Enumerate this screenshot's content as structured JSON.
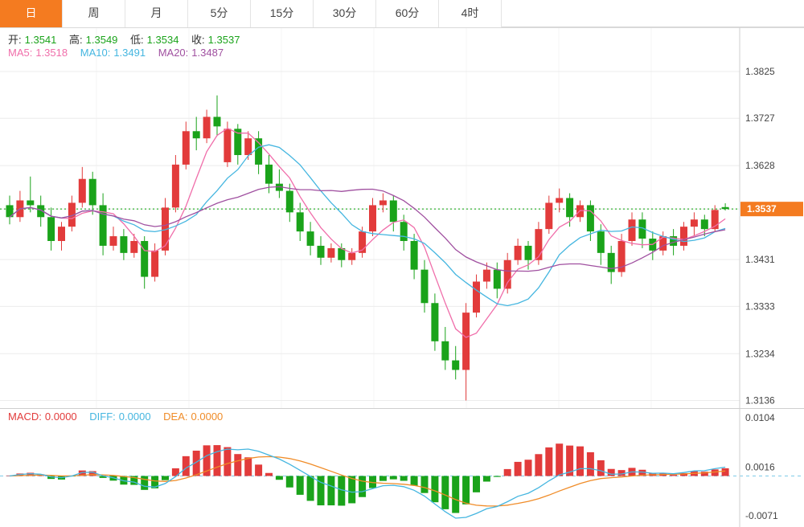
{
  "tabs": [
    {
      "label": "日",
      "active": true
    },
    {
      "label": "周",
      "active": false
    },
    {
      "label": "月",
      "active": false
    },
    {
      "label": "5分",
      "active": false
    },
    {
      "label": "15分",
      "active": false
    },
    {
      "label": "30分",
      "active": false
    },
    {
      "label": "60分",
      "active": false
    },
    {
      "label": "4时",
      "active": false
    }
  ],
  "ohlc": {
    "open_label": "开:",
    "open": "1.3541",
    "high_label": "高:",
    "high": "1.3549",
    "low_label": "低:",
    "low": "1.3534",
    "close_label": "收:",
    "close": "1.3537"
  },
  "ma_legend": {
    "ma5_label": "MA5:",
    "ma5": "1.3518",
    "ma10_label": "MA10:",
    "ma10": "1.3491",
    "ma20_label": "MA20:",
    "ma20": "1.3487"
  },
  "macd_legend": {
    "macd_label": "MACD:",
    "macd": "0.0000",
    "diff_label": "DIFF:",
    "diff": "0.0000",
    "dea_label": "DEA:",
    "dea": "0.0000"
  },
  "price_tag": "1.3537",
  "colors": {
    "up": "#e23b3b",
    "down": "#1aa31a",
    "ma5": "#f06eaa",
    "ma10": "#45b6e0",
    "ma20": "#a050a0",
    "diff": "#45b6e0",
    "dea": "#f08c28",
    "accent": "#f47b20",
    "dotted_line": "#00a000",
    "zero_line": "#7fcbe8"
  },
  "chart_data": {
    "type": "candlestick+macd",
    "timeframe": "日",
    "y_ticks_main": [
      "1.3825",
      "1.3727",
      "1.3628",
      "1.3537",
      "1.3431",
      "1.3333",
      "1.3234",
      "1.3136"
    ],
    "y_ticks_macd": [
      "0.0104",
      "0.0016",
      "-0.0071"
    ],
    "current_price": 1.3537,
    "last_ohlc": {
      "open": 1.3541,
      "high": 1.3549,
      "low": 1.3534,
      "close": 1.3537
    },
    "ma_values": {
      "ma5": 1.3518,
      "ma10": 1.3491,
      "ma20": 1.3487
    },
    "candles": [
      [
        1.3545,
        1.3565,
        1.3505,
        1.352
      ],
      [
        1.352,
        1.3575,
        1.351,
        1.3555
      ],
      [
        1.3555,
        1.3605,
        1.353,
        1.3545
      ],
      [
        1.3545,
        1.3565,
        1.35,
        1.352
      ],
      [
        1.352,
        1.354,
        1.345,
        1.347
      ],
      [
        1.347,
        1.351,
        1.345,
        1.35
      ],
      [
        1.35,
        1.3565,
        1.349,
        1.355
      ],
      [
        1.355,
        1.3625,
        1.354,
        1.36
      ],
      [
        1.36,
        1.3615,
        1.3525,
        1.3545
      ],
      [
        1.3545,
        1.357,
        1.344,
        1.346
      ],
      [
        1.346,
        1.35,
        1.345,
        1.348
      ],
      [
        1.348,
        1.3495,
        1.343,
        1.3445
      ],
      [
        1.3445,
        1.3485,
        1.3435,
        1.347
      ],
      [
        1.347,
        1.348,
        1.337,
        1.3395
      ],
      [
        1.3395,
        1.3465,
        1.3385,
        1.345
      ],
      [
        1.345,
        1.356,
        1.344,
        1.354
      ],
      [
        1.354,
        1.365,
        1.353,
        1.363
      ],
      [
        1.363,
        1.372,
        1.362,
        1.37
      ],
      [
        1.37,
        1.373,
        1.366,
        1.3685
      ],
      [
        1.3685,
        1.3745,
        1.3675,
        1.373
      ],
      [
        1.373,
        1.3775,
        1.369,
        1.371
      ],
      [
        1.3635,
        1.372,
        1.3625,
        1.3705
      ],
      [
        1.3705,
        1.3715,
        1.363,
        1.365
      ],
      [
        1.365,
        1.37,
        1.364,
        1.3685
      ],
      [
        1.3685,
        1.37,
        1.361,
        1.363
      ],
      [
        1.363,
        1.365,
        1.357,
        1.359
      ],
      [
        1.359,
        1.362,
        1.356,
        1.3575
      ],
      [
        1.3575,
        1.359,
        1.351,
        1.353
      ],
      [
        1.353,
        1.355,
        1.347,
        1.349
      ],
      [
        1.349,
        1.351,
        1.344,
        1.346
      ],
      [
        1.346,
        1.348,
        1.342,
        1.3435
      ],
      [
        1.3435,
        1.3465,
        1.3425,
        1.3455
      ],
      [
        1.3455,
        1.3465,
        1.3415,
        1.343
      ],
      [
        1.343,
        1.3455,
        1.342,
        1.3445
      ],
      [
        1.3445,
        1.35,
        1.3435,
        1.349
      ],
      [
        1.349,
        1.356,
        1.348,
        1.3545
      ],
      [
        1.3545,
        1.357,
        1.353,
        1.3555
      ],
      [
        1.3555,
        1.3565,
        1.349,
        1.351
      ],
      [
        1.351,
        1.3525,
        1.345,
        1.347
      ],
      [
        1.347,
        1.3485,
        1.339,
        1.341
      ],
      [
        1.341,
        1.343,
        1.332,
        1.334
      ],
      [
        1.334,
        1.336,
        1.324,
        1.326
      ],
      [
        1.326,
        1.329,
        1.32,
        1.322
      ],
      [
        1.322,
        1.325,
        1.318,
        1.32
      ],
      [
        1.32,
        1.334,
        1.3136,
        1.332
      ],
      [
        1.332,
        1.34,
        1.331,
        1.3385
      ],
      [
        1.3385,
        1.3425,
        1.337,
        1.341
      ],
      [
        1.341,
        1.3425,
        1.335,
        1.337
      ],
      [
        1.337,
        1.3445,
        1.336,
        1.343
      ],
      [
        1.343,
        1.3475,
        1.342,
        1.346
      ],
      [
        1.346,
        1.347,
        1.341,
        1.343
      ],
      [
        1.343,
        1.351,
        1.342,
        1.3495
      ],
      [
        1.3495,
        1.3565,
        1.3485,
        1.355
      ],
      [
        1.355,
        1.358,
        1.353,
        1.356
      ],
      [
        1.356,
        1.357,
        1.35,
        1.352
      ],
      [
        1.352,
        1.3555,
        1.351,
        1.3545
      ],
      [
        1.3545,
        1.3555,
        1.347,
        1.349
      ],
      [
        1.349,
        1.3505,
        1.342,
        1.3445
      ],
      [
        1.3445,
        1.346,
        1.338,
        1.3405
      ],
      [
        1.3405,
        1.3485,
        1.3395,
        1.347
      ],
      [
        1.347,
        1.353,
        1.346,
        1.3515
      ],
      [
        1.3515,
        1.353,
        1.3455,
        1.3475
      ],
      [
        1.3475,
        1.349,
        1.343,
        1.345
      ],
      [
        1.345,
        1.349,
        1.344,
        1.348
      ],
      [
        1.348,
        1.3495,
        1.344,
        1.346
      ],
      [
        1.346,
        1.351,
        1.345,
        1.35
      ],
      [
        1.35,
        1.353,
        1.348,
        1.3515
      ],
      [
        1.3515,
        1.3525,
        1.348,
        1.3495
      ],
      [
        1.3495,
        1.3545,
        1.349,
        1.3535
      ],
      [
        1.3541,
        1.3549,
        1.3534,
        1.3537
      ]
    ]
  }
}
